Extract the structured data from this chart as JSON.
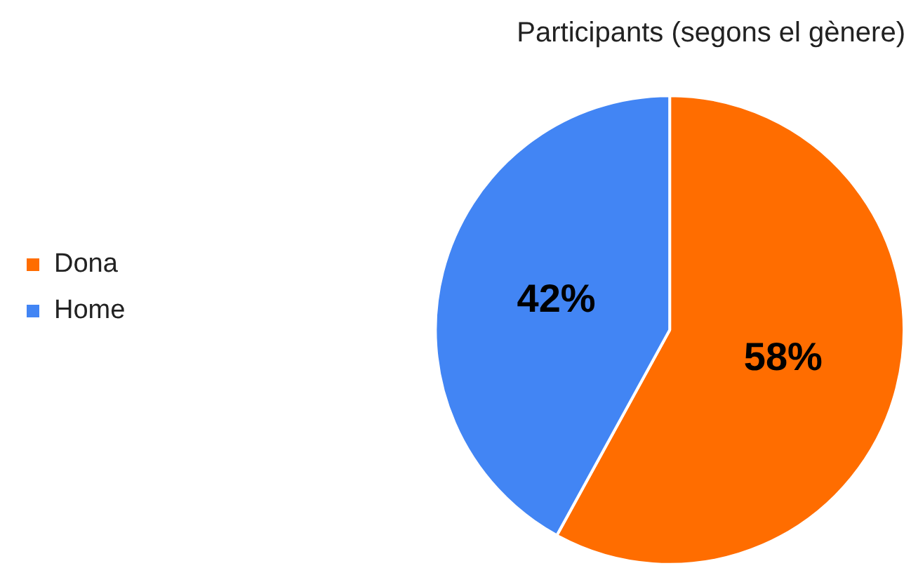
{
  "chart_data": {
    "type": "pie",
    "title": "Participants (segons el gènere)",
    "categories": [
      "Dona",
      "Home"
    ],
    "values": [
      58,
      42
    ],
    "colors": [
      "#ff6d00",
      "#4285f4"
    ],
    "value_labels": [
      "58%",
      "42%"
    ],
    "legend": "left"
  }
}
